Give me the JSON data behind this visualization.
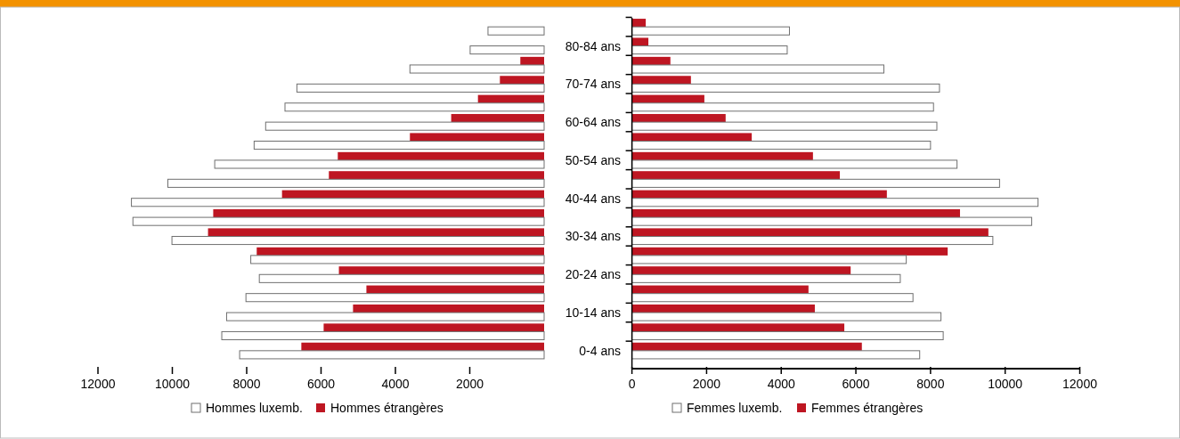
{
  "chart_data": [
    {
      "type": "bar",
      "orientation": "horizontal",
      "categories": [
        null,
        "80-84 ans",
        null,
        "70-74 ans",
        null,
        "60-64 ans",
        null,
        "50-54 ans",
        null,
        "40-44 ans",
        null,
        "30-34 ans",
        null,
        "20-24 ans",
        null,
        "10-14 ans",
        null,
        "0-4 ans"
      ],
      "series": [
        {
          "name": "Hommes étrangères",
          "color": "#be1622",
          "values": [
            0,
            0,
            640,
            1190,
            1780,
            2500,
            3610,
            5550,
            5790,
            7050,
            8900,
            9040,
            7730,
            5520,
            4780,
            5140,
            5930,
            6530
          ]
        },
        {
          "name": "Hommes luxemb.",
          "color": "#ffffff",
          "values": [
            1510,
            1990,
            3610,
            6650,
            6970,
            7490,
            7800,
            8860,
            10120,
            11100,
            11060,
            10010,
            7890,
            7660,
            8020,
            8540,
            8670,
            8190
          ]
        }
      ],
      "xlim": [
        12000,
        0
      ],
      "xticks": [
        12000,
        10000,
        8000,
        6000,
        4000,
        2000
      ],
      "legend": "bottom",
      "grid": false
    },
    {
      "type": "bar",
      "orientation": "horizontal",
      "categories": [
        null,
        null,
        null,
        null,
        null,
        null,
        null,
        null,
        null,
        null,
        null,
        null,
        null,
        null,
        null,
        null,
        null,
        null
      ],
      "series": [
        {
          "name": "Femmes étrangères",
          "color": "#be1622",
          "values": [
            370,
            440,
            1030,
            1580,
            1940,
            2510,
            3210,
            4850,
            5570,
            6830,
            8790,
            9550,
            8460,
            5860,
            4730,
            4900,
            5690,
            6160
          ]
        },
        {
          "name": "Femmes luxemb.",
          "color": "#ffffff",
          "values": [
            4220,
            4160,
            6750,
            8240,
            8080,
            8170,
            8000,
            8710,
            9850,
            10880,
            10710,
            9670,
            7350,
            7190,
            7530,
            8280,
            8340,
            7710
          ]
        }
      ],
      "xlim": [
        0,
        12000
      ],
      "xticks": [
        0,
        2000,
        4000,
        6000,
        8000,
        10000,
        12000
      ],
      "legend": "bottom",
      "grid": false
    }
  ]
}
